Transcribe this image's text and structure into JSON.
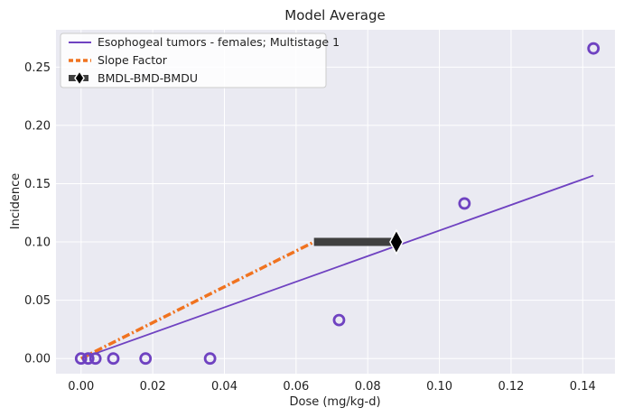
{
  "chart_data": {
    "type": "line",
    "title": "Model Average",
    "xlabel": "Dose (mg/kg-d)",
    "ylabel": "Incidence",
    "xlim": [
      -0.007,
      0.149
    ],
    "ylim": [
      -0.013,
      0.282
    ],
    "xticks": [
      0.0,
      0.02,
      0.04,
      0.06,
      0.08,
      0.1,
      0.12,
      0.14
    ],
    "xtick_labels": [
      "0.00",
      "0.02",
      "0.04",
      "0.06",
      "0.08",
      "0.10",
      "0.12",
      "0.14"
    ],
    "yticks": [
      0.0,
      0.05,
      0.1,
      0.15,
      0.2,
      0.25
    ],
    "ytick_labels": [
      "0.00",
      "0.05",
      "0.10",
      "0.15",
      "0.20",
      "0.25"
    ],
    "grid": true,
    "legend_position": "top-left",
    "series": [
      {
        "name": "Esophogeal tumors - females; Multistage 1",
        "kind": "line",
        "color": "#6f42c1",
        "x": [
          0.0,
          0.143
        ],
        "y": [
          0.0,
          0.157
        ]
      },
      {
        "name": "Slope Factor",
        "kind": "dashdot-line",
        "color": "#f07320",
        "x": [
          0.0,
          0.065
        ],
        "y": [
          0.0,
          0.1
        ]
      },
      {
        "name": "BMDL-BMD-BMDU",
        "kind": "errorbar",
        "color": "#404040",
        "bmdl": 0.065,
        "bmd": 0.088,
        "bmdu": 0.088,
        "y": 0.1
      },
      {
        "kind": "scatter",
        "color": "#6f42c1",
        "x": [
          0.0,
          0.002,
          0.004,
          0.009,
          0.018,
          0.036,
          0.072,
          0.107,
          0.143
        ],
        "y": [
          0.0,
          0.0,
          0.0,
          0.0,
          0.0,
          0.0,
          0.033,
          0.133,
          0.266
        ]
      }
    ]
  }
}
